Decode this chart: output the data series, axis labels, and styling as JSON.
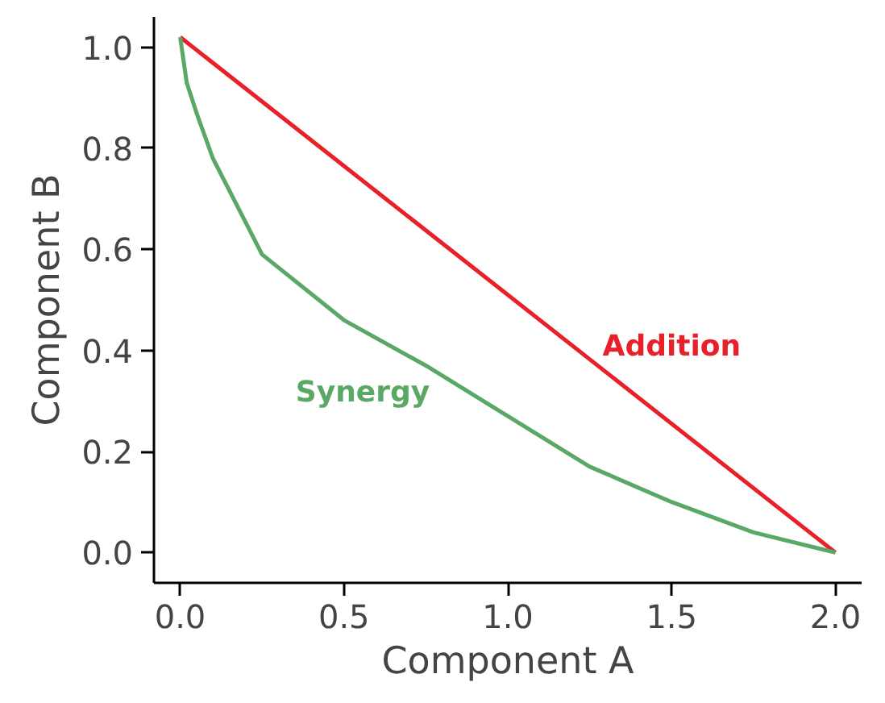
{
  "chart_data": {
    "type": "line",
    "xlabel": "Component A",
    "ylabel": "Component B",
    "xlim": [
      -0.08,
      2.08
    ],
    "ylim": [
      -0.06,
      1.06
    ],
    "xticks": [
      {
        "value": 0,
        "label": "0.0"
      },
      0.5,
      {
        "value": 1,
        "label": "1.0"
      },
      1.5,
      {
        "value": 2,
        "label": "2.0"
      }
    ],
    "yticks": [
      {
        "value": 0,
        "label": "0.0"
      },
      0.2,
      0.4,
      0.6,
      0.8,
      {
        "value": 1,
        "label": "1.0"
      }
    ],
    "grid": false,
    "legend": false,
    "marker": "none",
    "line_style": "solid",
    "series": [
      {
        "name": "Addition",
        "color": "#e8202a",
        "x": [
          0,
          2
        ],
        "values": [
          1.02,
          0
        ]
      },
      {
        "name": "Synergy",
        "color": "#5aa865",
        "x": [
          0,
          0.02,
          0.05,
          0.1,
          0.25,
          0.5,
          0.75,
          1.0,
          1.25,
          1.5,
          1.75,
          2.0
        ],
        "values": [
          1.02,
          0.93,
          0.87,
          0.78,
          0.59,
          0.46,
          0.37,
          0.27,
          0.17,
          0.1,
          0.04,
          0
        ]
      }
    ]
  }
}
